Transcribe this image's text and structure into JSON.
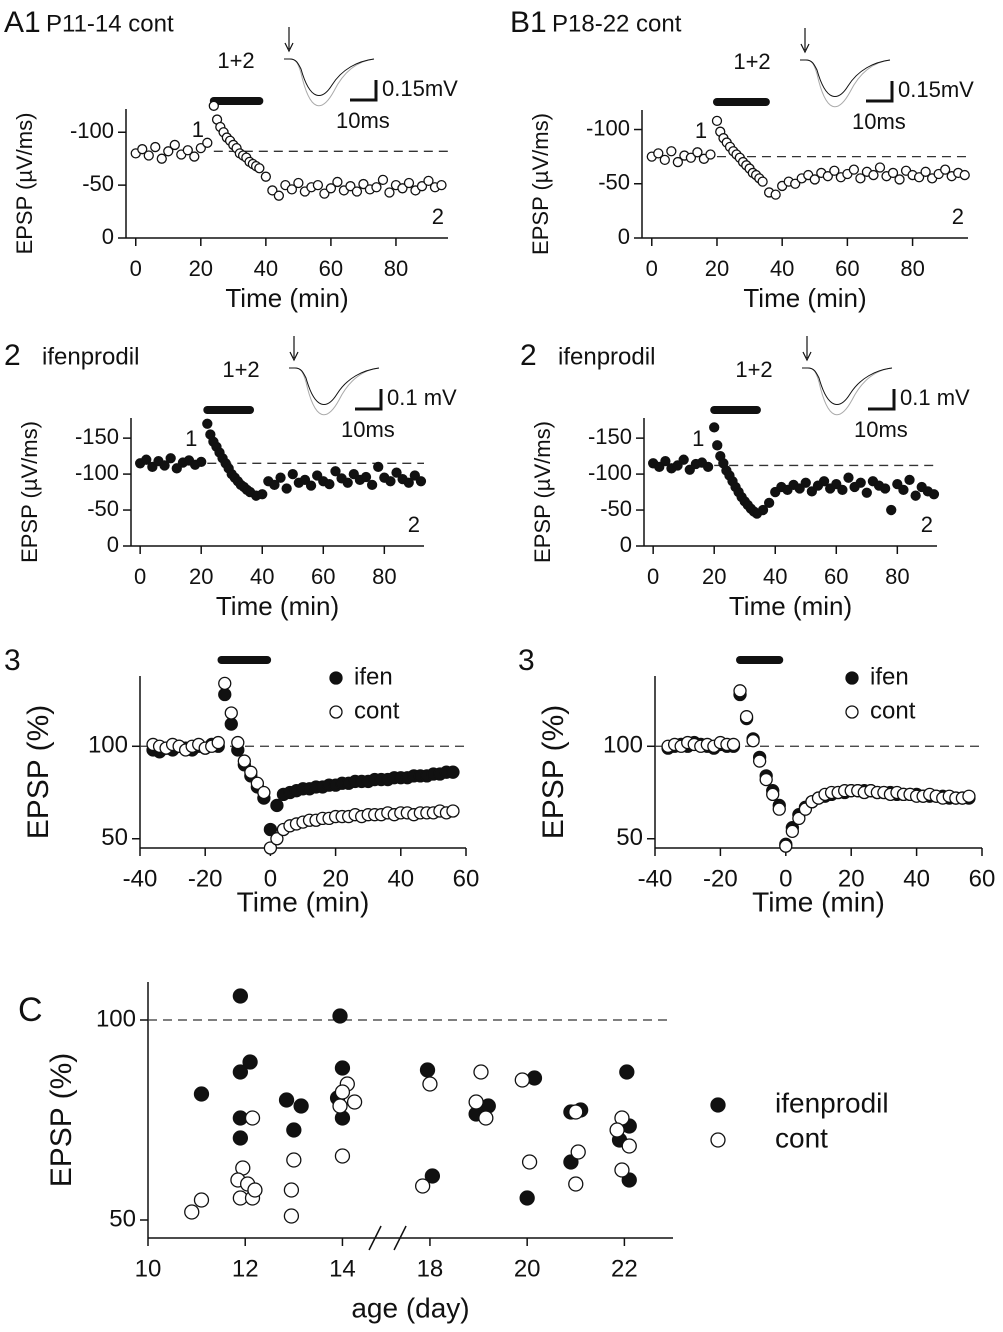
{
  "chart_data": [
    {
      "type": "scatter",
      "label": "A1",
      "title": "P11-14 cont",
      "inset": {
        "label": "1+2",
        "scale_y": "0.15mV",
        "scale_x": "10ms"
      },
      "annotations": [
        "1",
        "2"
      ],
      "xlabel": "Time (min)",
      "ylabel": "EPSP (µV/ms)",
      "marker": "open",
      "color": "#111111",
      "x": [
        0,
        2,
        4,
        6,
        8,
        10,
        12,
        14,
        16,
        18,
        20,
        22,
        24,
        25,
        26,
        27,
        28,
        29,
        30,
        31,
        32,
        33,
        34,
        35,
        36,
        37,
        38,
        40,
        42,
        44,
        46,
        48,
        50,
        52,
        54,
        56,
        58,
        60,
        62,
        64,
        66,
        68,
        70,
        72,
        74,
        76,
        78,
        80,
        82,
        84,
        86,
        88,
        90,
        92,
        94
      ],
      "values": [
        -80,
        -84,
        -78,
        -86,
        -75,
        -82,
        -88,
        -79,
        -83,
        -77,
        -85,
        -90,
        -125,
        -112,
        -105,
        -100,
        -95,
        -92,
        -88,
        -85,
        -80,
        -78,
        -76,
        -72,
        -70,
        -68,
        -66,
        -58,
        -45,
        -40,
        -50,
        -46,
        -52,
        -44,
        -48,
        -50,
        -42,
        -47,
        -53,
        -45,
        -49,
        -44,
        -51,
        -46,
        -48,
        -55,
        -43,
        -50,
        -47,
        -52,
        -45,
        -49,
        -54,
        -48,
        -50
      ],
      "xlim": [
        -3,
        96
      ],
      "ylim": [
        0,
        -122
      ],
      "xticks": [
        0,
        20,
        40,
        60,
        80
      ],
      "yticks": [
        0,
        -50,
        -100
      ],
      "hline": -82,
      "drug_bar": [
        24,
        38
      ]
    },
    {
      "type": "scatter",
      "label": "B1",
      "title": "P18-22 cont",
      "inset": {
        "label": "1+2",
        "scale_y": "0.15mV",
        "scale_x": "10ms"
      },
      "annotations": [
        "1",
        "2"
      ],
      "xlabel": "Time (min)",
      "ylabel": "EPSP (µV/ms)",
      "marker": "open",
      "color": "#111111",
      "x": [
        0,
        2,
        4,
        6,
        8,
        10,
        12,
        14,
        16,
        18,
        20,
        21,
        22,
        23,
        24,
        25,
        26,
        27,
        28,
        29,
        30,
        31,
        32,
        33,
        34,
        36,
        38,
        40,
        42,
        44,
        46,
        48,
        50,
        52,
        54,
        56,
        58,
        60,
        62,
        64,
        66,
        68,
        70,
        72,
        74,
        76,
        78,
        80,
        82,
        84,
        86,
        88,
        90,
        92,
        94,
        96
      ],
      "values": [
        -75,
        -78,
        -72,
        -80,
        -70,
        -76,
        -74,
        -79,
        -73,
        -77,
        -108,
        -98,
        -92,
        -88,
        -84,
        -80,
        -77,
        -74,
        -70,
        -67,
        -64,
        -60,
        -58,
        -55,
        -52,
        -42,
        -40,
        -48,
        -52,
        -50,
        -55,
        -58,
        -54,
        -60,
        -57,
        -62,
        -56,
        -59,
        -63,
        -55,
        -61,
        -58,
        -65,
        -57,
        -60,
        -54,
        -62,
        -58,
        -56,
        -61,
        -55,
        -59,
        -63,
        -57,
        -60,
        -58
      ],
      "xlim": [
        -3,
        97
      ],
      "ylim": [
        0,
        -118
      ],
      "xticks": [
        0,
        20,
        40,
        60,
        80
      ],
      "yticks": [
        0,
        -50,
        -100
      ],
      "hline": -75,
      "drug_bar": [
        20,
        35
      ]
    },
    {
      "type": "scatter",
      "label": "2",
      "title": "ifenprodil",
      "inset": {
        "label": "1+2",
        "scale_y": "0.1 mV",
        "scale_x": "10ms"
      },
      "annotations": [
        "1",
        "2"
      ],
      "xlabel": "Time (min)",
      "ylabel": "EPSP (µV/ms)",
      "marker": "filled",
      "color": "#111111",
      "x": [
        0,
        2,
        4,
        6,
        8,
        10,
        12,
        14,
        16,
        18,
        20,
        22,
        23,
        24,
        25,
        26,
        27,
        28,
        29,
        30,
        31,
        32,
        33,
        34,
        35,
        36,
        38,
        40,
        42,
        44,
        46,
        48,
        50,
        52,
        54,
        56,
        58,
        60,
        62,
        64,
        66,
        68,
        70,
        72,
        74,
        76,
        78,
        80,
        82,
        84,
        86,
        88,
        90,
        92
      ],
      "values": [
        -115,
        -120,
        -110,
        -118,
        -112,
        -122,
        -108,
        -116,
        -119,
        -113,
        -117,
        -170,
        -155,
        -145,
        -138,
        -130,
        -122,
        -115,
        -108,
        -100,
        -95,
        -90,
        -85,
        -82,
        -78,
        -75,
        -70,
        -72,
        -90,
        -85,
        -95,
        -80,
        -100,
        -88,
        -92,
        -84,
        -98,
        -90,
        -86,
        -104,
        -94,
        -88,
        -100,
        -92,
        -96,
        -85,
        -110,
        -95,
        -90,
        -102,
        -93,
        -88,
        -98,
        -90
      ],
      "xlim": [
        -3,
        93
      ],
      "ylim": [
        0,
        -178
      ],
      "xticks": [
        0,
        20,
        40,
        60,
        80
      ],
      "yticks": [
        0,
        -50,
        -100,
        -150
      ],
      "hline": -115,
      "drug_bar": [
        22,
        36
      ]
    },
    {
      "type": "scatter",
      "label": "2",
      "title": "ifenprodil",
      "inset": {
        "label": "1+2",
        "scale_y": "0.1 mV",
        "scale_x": "10ms"
      },
      "annotations": [
        "1",
        "2"
      ],
      "xlabel": "Time (min)",
      "ylabel": "EPSP (µV/ms)",
      "marker": "filled",
      "color": "#111111",
      "x": [
        0,
        2,
        4,
        6,
        8,
        10,
        12,
        14,
        16,
        18,
        20,
        21,
        22,
        23,
        24,
        25,
        26,
        27,
        28,
        29,
        30,
        31,
        32,
        33,
        34,
        36,
        38,
        40,
        42,
        44,
        46,
        48,
        50,
        52,
        54,
        56,
        58,
        60,
        62,
        64,
        66,
        68,
        70,
        72,
        74,
        76,
        78,
        80,
        82,
        84,
        86,
        88,
        90,
        92
      ],
      "values": [
        -115,
        -110,
        -118,
        -108,
        -112,
        -120,
        -106,
        -114,
        -116,
        -110,
        -165,
        -140,
        -125,
        -115,
        -105,
        -98,
        -90,
        -82,
        -75,
        -68,
        -62,
        -57,
        -52,
        -48,
        -45,
        -50,
        -60,
        -75,
        -82,
        -78,
        -85,
        -80,
        -88,
        -76,
        -84,
        -90,
        -80,
        -86,
        -78,
        -95,
        -82,
        -88,
        -74,
        -90,
        -84,
        -80,
        -50,
        -86,
        -78,
        -92,
        -70,
        -82,
        -76,
        -72
      ],
      "xlim": [
        -3,
        93
      ],
      "ylim": [
        0,
        -178
      ],
      "xticks": [
        0,
        20,
        40,
        60,
        80
      ],
      "yticks": [
        0,
        -50,
        -100,
        -150
      ],
      "hline": -112,
      "drug_bar": [
        20,
        34
      ]
    },
    {
      "type": "scatter",
      "label": "3",
      "xlabel": "Time (min)",
      "ylabel": "EPSP (%)",
      "legend": "upper right",
      "x": [
        -36,
        -34,
        -32,
        -30,
        -28,
        -26,
        -24,
        -22,
        -20,
        -18,
        -16,
        -14,
        -12,
        -10,
        -8,
        -6,
        -4,
        -2,
        0,
        2,
        4,
        6,
        8,
        10,
        12,
        14,
        16,
        18,
        20,
        22,
        24,
        26,
        28,
        30,
        32,
        34,
        36,
        38,
        40,
        42,
        44,
        46,
        48,
        50,
        52,
        54,
        56
      ],
      "series": [
        {
          "name": "ifen",
          "color": "#111111",
          "marker": "filled",
          "values": [
            98,
            97,
            99,
            98,
            100,
            99,
            98,
            100,
            99,
            101,
            100,
            128,
            112,
            98,
            90,
            84,
            78,
            72,
            55,
            68,
            74,
            75,
            76,
            77,
            77,
            78,
            78,
            79,
            79,
            80,
            80,
            81,
            81,
            81,
            82,
            82,
            82,
            83,
            83,
            83,
            84,
            84,
            84,
            85,
            85,
            86,
            86
          ]
        },
        {
          "name": "cont",
          "color": "#111111",
          "marker": "open",
          "values": [
            101,
            100,
            99,
            101,
            100,
            98,
            100,
            101,
            99,
            100,
            102,
            134,
            118,
            102,
            92,
            86,
            80,
            75,
            45,
            50,
            55,
            57,
            58,
            59,
            60,
            60,
            61,
            61,
            62,
            62,
            62,
            63,
            62,
            63,
            63,
            63,
            64,
            63,
            64,
            64,
            63,
            64,
            64,
            64,
            65,
            64,
            65
          ]
        }
      ],
      "xlim": [
        -40,
        60
      ],
      "ylim": [
        45,
        138
      ],
      "xticks": [
        -40,
        -20,
        0,
        20,
        40,
        60
      ],
      "yticks": [
        50,
        100
      ],
      "hline": 100,
      "drug_bar": [
        -15,
        -1
      ]
    },
    {
      "type": "scatter",
      "label": "3",
      "xlabel": "Time (min)",
      "ylabel": "EPSP (%)",
      "legend": "upper right",
      "x": [
        -36,
        -34,
        -32,
        -30,
        -28,
        -26,
        -24,
        -22,
        -20,
        -18,
        -16,
        -14,
        -12,
        -10,
        -8,
        -6,
        -4,
        -2,
        0,
        2,
        4,
        6,
        8,
        10,
        12,
        14,
        16,
        18,
        20,
        22,
        24,
        26,
        28,
        30,
        32,
        34,
        36,
        38,
        40,
        42,
        44,
        46,
        48,
        50,
        52,
        54,
        56
      ],
      "series": [
        {
          "name": "ifen",
          "color": "#111111",
          "marker": "filled",
          "values": [
            99,
            100,
            101,
            100,
            102,
            101,
            100,
            99,
            101,
            100,
            100,
            128,
            115,
            104,
            94,
            84,
            76,
            68,
            47,
            56,
            63,
            67,
            70,
            72,
            73,
            74,
            75,
            75,
            76,
            76,
            76,
            76,
            75,
            75,
            75,
            74,
            74,
            74,
            74,
            73,
            73,
            73,
            73,
            72,
            72,
            72,
            72
          ]
        },
        {
          "name": "cont",
          "color": "#111111",
          "marker": "open",
          "values": [
            100,
            101,
            100,
            102,
            101,
            100,
            101,
            100,
            102,
            101,
            101,
            130,
            116,
            103,
            92,
            82,
            74,
            66,
            46,
            54,
            61,
            66,
            70,
            72,
            74,
            75,
            75,
            76,
            76,
            76,
            75,
            76,
            75,
            75,
            74,
            75,
            74,
            74,
            73,
            73,
            74,
            73,
            72,
            73,
            72,
            72,
            73
          ]
        }
      ],
      "xlim": [
        -40,
        60
      ],
      "ylim": [
        45,
        138
      ],
      "xticks": [
        -40,
        -20,
        0,
        20,
        40,
        60
      ],
      "yticks": [
        50,
        100
      ],
      "hline": 100,
      "drug_bar": [
        -14,
        -2
      ]
    },
    {
      "type": "scatter",
      "label": "C",
      "xlabel": "age (day)",
      "ylabel": "EPSP (%)",
      "legend": "right",
      "series": [
        {
          "name": "ifenprodil",
          "color": "#111111",
          "marker": "filled",
          "x": [
            11.1,
            11.9,
            11.9,
            12.1,
            11.9,
            11.9,
            12.85,
            13.15,
            13.0,
            13.95,
            14.0,
            13.9,
            14.0,
            17.95,
            18.05,
            18.95,
            19.2,
            20.15,
            20.0,
            20.9,
            21.1,
            20.9,
            22.05,
            22.1,
            21.9,
            22.1
          ],
          "values": [
            81.5,
            106,
            87,
            89.5,
            75.5,
            70.5,
            80,
            78.5,
            72.5,
            101,
            88,
            80.5,
            75.5,
            87.5,
            61,
            76.5,
            78.5,
            85.5,
            55.5,
            77,
            77.5,
            64.5,
            87,
            73.5,
            70,
            60
          ]
        },
        {
          "name": "cont",
          "color": "#111111",
          "marker": "open",
          "x": [
            10.9,
            11.1,
            12.15,
            11.95,
            11.85,
            12.05,
            11.9,
            12.15,
            12.2,
            13.0,
            12.95,
            12.95,
            14.1,
            14.0,
            14.25,
            13.95,
            14.0,
            18.0,
            17.85,
            19.05,
            18.95,
            19.15,
            19.9,
            20.05,
            21.0,
            21.05,
            21.0,
            21.95,
            21.85,
            22.1,
            21.95
          ],
          "values": [
            52,
            55,
            75.5,
            63,
            60,
            59,
            55.5,
            55.5,
            57.5,
            65,
            57.5,
            51,
            84,
            82,
            79.5,
            78.5,
            66,
            84,
            58.5,
            87,
            79.5,
            75.5,
            85,
            64.5,
            77,
            67,
            59,
            75.5,
            72.5,
            68.5,
            62.5
          ]
        }
      ],
      "xlim": [
        10,
        23
      ],
      "xbreak": [
        15,
        17.2
      ],
      "ylim": [
        45.5,
        109.5
      ],
      "xticks": [
        10,
        12,
        14,
        18,
        20,
        22
      ],
      "yticks": [
        50,
        100
      ],
      "hline": 100
    }
  ]
}
